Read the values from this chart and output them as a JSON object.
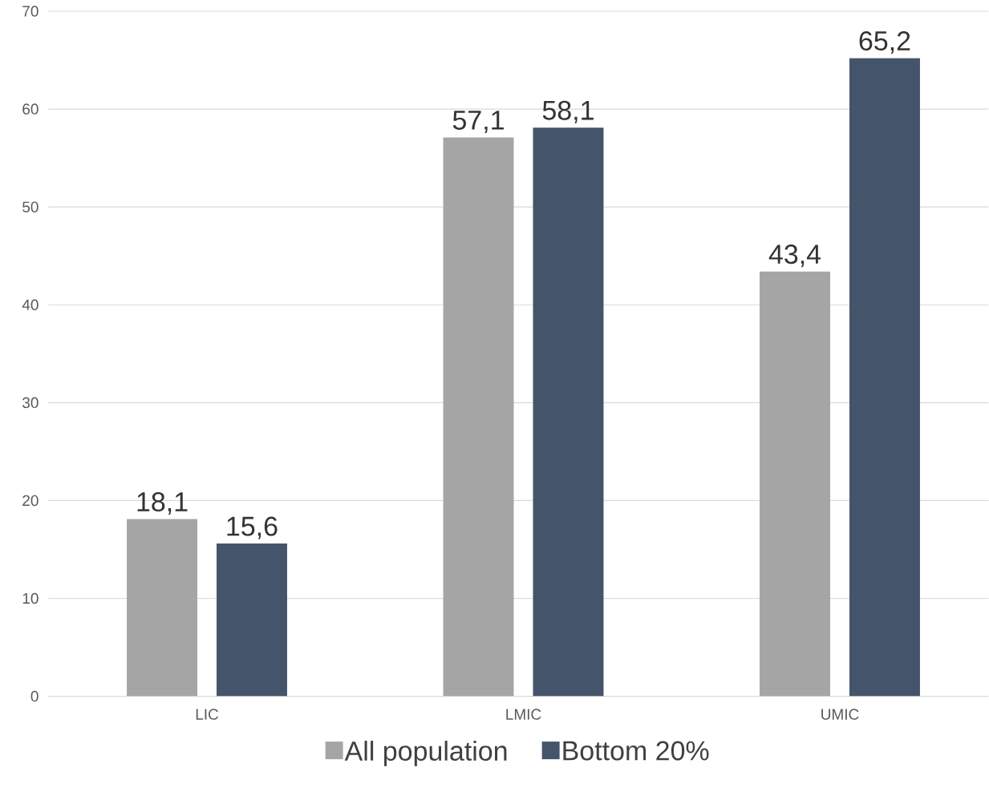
{
  "chart_data": {
    "type": "bar",
    "categories": [
      "LIC",
      "LMIC",
      "UMIC"
    ],
    "series": [
      {
        "name": "All population",
        "color": "#a5a5a5",
        "values": [
          18.1,
          57.1,
          43.4
        ],
        "value_labels": [
          "18,1",
          "57,1",
          "43,4"
        ]
      },
      {
        "name": "Bottom 20%",
        "color": "#44546a",
        "values": [
          15.6,
          58.1,
          65.2
        ],
        "value_labels": [
          "15,6",
          "58,1",
          "65,2"
        ]
      }
    ],
    "ylim": [
      0,
      70
    ],
    "yticks": [
      0,
      10,
      20,
      30,
      40,
      50,
      60,
      70
    ],
    "grid": "y",
    "legend": "bottom"
  }
}
